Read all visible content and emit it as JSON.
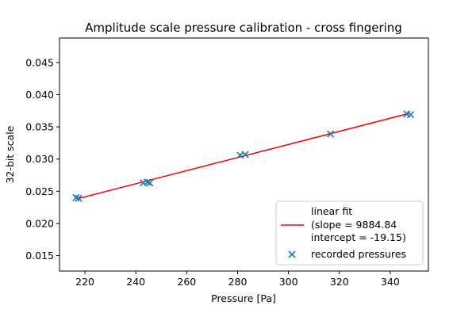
{
  "chart_data": {
    "type": "scatter",
    "title": "Amplitude scale pressure calibration - cross fingering",
    "xlabel": "Pressure [Pa]",
    "ylabel": "32-bit scale",
    "xlim": [
      210,
      355
    ],
    "ylim": [
      0.0126,
      0.0488
    ],
    "x_ticks": [
      220,
      240,
      260,
      280,
      300,
      320,
      340
    ],
    "y_ticks": [
      0.015,
      0.02,
      0.025,
      0.03,
      0.035,
      0.04,
      0.045
    ],
    "x_tick_labels": [
      "220",
      "240",
      "260",
      "280",
      "300",
      "320",
      "340"
    ],
    "y_tick_labels": [
      "0.015",
      "0.020",
      "0.025",
      "0.030",
      "0.035",
      "0.040",
      "0.045"
    ],
    "grid": false,
    "legend_position": "bottom-right",
    "series": [
      {
        "name": "linear fit",
        "label_lines": [
          "linear fit",
          "(slope = 9884.84",
          "intercept = -19.15)"
        ],
        "kind": "line",
        "color": "#ff0000",
        "x": [
          216.8,
          347.5
        ],
        "y": [
          0.0238,
          0.0371
        ]
      },
      {
        "name": "recorded pressures",
        "label_lines": [
          "recorded pressures"
        ],
        "kind": "scatter",
        "marker": "x",
        "color": "#1f77b4",
        "x": [
          216.5,
          217.5,
          243.0,
          244.5,
          245.5,
          281.0,
          283.0,
          316.5,
          346.5,
          348.0
        ],
        "y": [
          0.024,
          0.0239,
          0.0263,
          0.0264,
          0.0263,
          0.0306,
          0.0307,
          0.0339,
          0.037,
          0.0369
        ]
      }
    ]
  }
}
